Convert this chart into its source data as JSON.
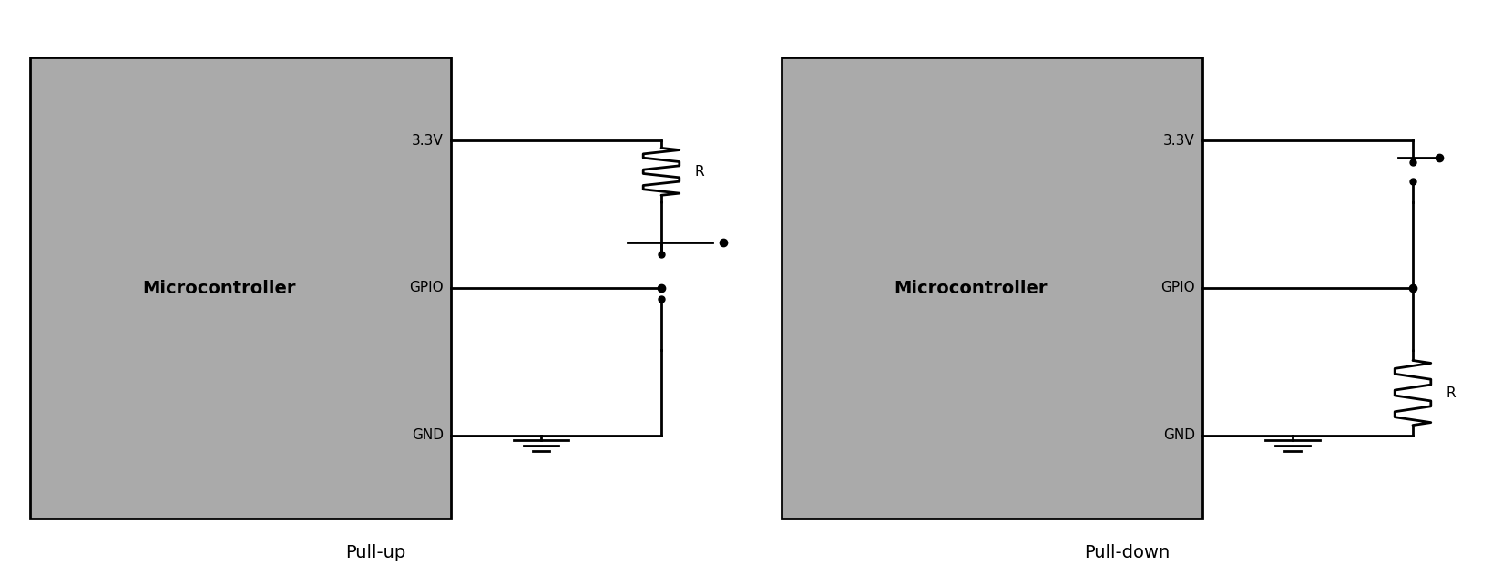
{
  "bg_color": "#aaaaaa",
  "line_color": "#000000",
  "title1": "Pull-up",
  "title2": "Pull-down",
  "label_33v": "3.3V",
  "label_gpio": "GPIO",
  "label_gnd": "GND",
  "label_r": "R",
  "label_micro": "Microcontroller",
  "fig_bg": "#ffffff",
  "lw": 2.0
}
